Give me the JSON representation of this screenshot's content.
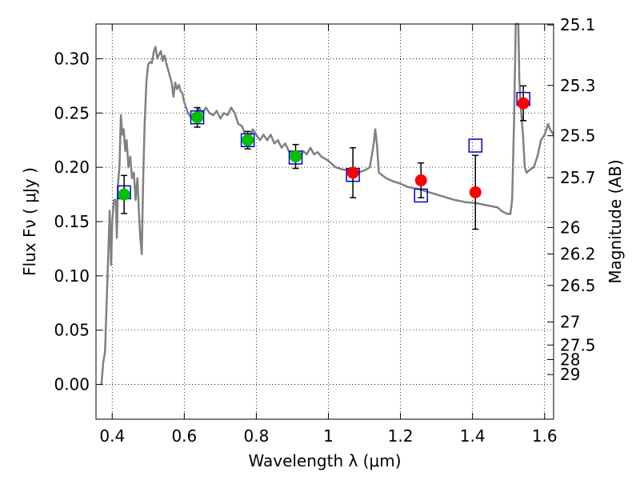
{
  "chart_data": {
    "type": "scatter",
    "title": "",
    "xlabel": "Wavelength  λ (μm)",
    "ylabel": "Flux  Fν  ( μJy )",
    "ylabel_right": "Magnitude (AB)",
    "xlim": [
      0.355,
      1.625
    ],
    "ylim": [
      -0.032,
      0.332
    ],
    "grid": true,
    "x_ticks": [
      0.4,
      0.6,
      0.8,
      1.0,
      1.2,
      1.4,
      1.6
    ],
    "x_tick_labels": [
      "0.4",
      "0.6",
      "0.8",
      "1",
      "1.2",
      "1.4",
      "1.6"
    ],
    "y_ticks": [
      0.0,
      0.05,
      0.1,
      0.15,
      0.2,
      0.25,
      0.3
    ],
    "y_tick_labels": [
      "0.00",
      "0.05",
      "0.10",
      "0.15",
      "0.20",
      "0.25",
      "0.30"
    ],
    "right_ticks": [
      {
        "mag": 25.1,
        "label": "25.1"
      },
      {
        "mag": 25.3,
        "label": "25.3"
      },
      {
        "mag": 25.5,
        "label": "25.5"
      },
      {
        "mag": 25.7,
        "label": "25.7"
      },
      {
        "mag": 26.0,
        "label": "26"
      },
      {
        "mag": 26.2,
        "label": "26.2"
      },
      {
        "mag": 26.5,
        "label": "26.5"
      },
      {
        "mag": 27.0,
        "label": "27"
      },
      {
        "mag": 27.5,
        "label": "27.5"
      },
      {
        "mag": 28.0,
        "label": "28"
      },
      {
        "mag": 29.0,
        "label": "29"
      }
    ],
    "colors": {
      "sed": "#808080",
      "green": "#00c000",
      "red": "#ff0000",
      "model_box": "#0000cc",
      "error_bar": "#000000",
      "grid": "#000000"
    },
    "series": [
      {
        "kind": "line",
        "points": [
          [
            0.37,
            0.0
          ],
          [
            0.375,
            0.02
          ],
          [
            0.38,
            0.03
          ],
          [
            0.385,
            0.08
          ],
          [
            0.39,
            0.13
          ],
          [
            0.393,
            0.16
          ],
          [
            0.397,
            0.11
          ],
          [
            0.4,
            0.15
          ],
          [
            0.405,
            0.17
          ],
          [
            0.41,
            0.17
          ],
          [
            0.413,
            0.135
          ],
          [
            0.416,
            0.185
          ],
          [
            0.42,
            0.2
          ],
          [
            0.424,
            0.248
          ],
          [
            0.428,
            0.23
          ],
          [
            0.432,
            0.235
          ],
          [
            0.436,
            0.215
          ],
          [
            0.44,
            0.225
          ],
          [
            0.445,
            0.2
          ],
          [
            0.45,
            0.21
          ],
          [
            0.455,
            0.19
          ],
          [
            0.46,
            0.195
          ],
          [
            0.465,
            0.17
          ],
          [
            0.47,
            0.19
          ],
          [
            0.474,
            0.16
          ],
          [
            0.478,
            0.135
          ],
          [
            0.482,
            0.12
          ],
          [
            0.486,
            0.19
          ],
          [
            0.49,
            0.24
          ],
          [
            0.495,
            0.28
          ],
          [
            0.5,
            0.295
          ],
          [
            0.505,
            0.297
          ],
          [
            0.51,
            0.296
          ],
          [
            0.515,
            0.306
          ],
          [
            0.52,
            0.311
          ],
          [
            0.525,
            0.3
          ],
          [
            0.53,
            0.304
          ],
          [
            0.535,
            0.307
          ],
          [
            0.54,
            0.298
          ],
          [
            0.545,
            0.303
          ],
          [
            0.55,
            0.296
          ],
          [
            0.555,
            0.29
          ],
          [
            0.56,
            0.284
          ],
          [
            0.565,
            0.278
          ],
          [
            0.57,
            0.265
          ],
          [
            0.575,
            0.278
          ],
          [
            0.58,
            0.272
          ],
          [
            0.585,
            0.276
          ],
          [
            0.59,
            0.27
          ],
          [
            0.595,
            0.268
          ],
          [
            0.6,
            0.26
          ],
          [
            0.61,
            0.25
          ],
          [
            0.62,
            0.245
          ],
          [
            0.63,
            0.245
          ],
          [
            0.64,
            0.255
          ],
          [
            0.65,
            0.25
          ],
          [
            0.66,
            0.255
          ],
          [
            0.67,
            0.25
          ],
          [
            0.68,
            0.248
          ],
          [
            0.69,
            0.252
          ],
          [
            0.7,
            0.245
          ],
          [
            0.71,
            0.25
          ],
          [
            0.72,
            0.248
          ],
          [
            0.73,
            0.255
          ],
          [
            0.74,
            0.25
          ],
          [
            0.75,
            0.24
          ],
          [
            0.76,
            0.238
          ],
          [
            0.77,
            0.23
          ],
          [
            0.78,
            0.225
          ],
          [
            0.79,
            0.235
          ],
          [
            0.8,
            0.23
          ],
          [
            0.81,
            0.225
          ],
          [
            0.82,
            0.23
          ],
          [
            0.83,
            0.225
          ],
          [
            0.84,
            0.23
          ],
          [
            0.85,
            0.222
          ],
          [
            0.86,
            0.225
          ],
          [
            0.87,
            0.218
          ],
          [
            0.88,
            0.222
          ],
          [
            0.89,
            0.215
          ],
          [
            0.9,
            0.212
          ],
          [
            0.91,
            0.215
          ],
          [
            0.92,
            0.21
          ],
          [
            0.93,
            0.215
          ],
          [
            0.94,
            0.212
          ],
          [
            0.95,
            0.218
          ],
          [
            0.96,
            0.212
          ],
          [
            0.97,
            0.214
          ],
          [
            0.98,
            0.21
          ],
          [
            0.99,
            0.208
          ],
          [
            1.0,
            0.206
          ],
          [
            1.02,
            0.2
          ],
          [
            1.04,
            0.198
          ],
          [
            1.06,
            0.197
          ],
          [
            1.08,
            0.195
          ],
          [
            1.1,
            0.197
          ],
          [
            1.115,
            0.2
          ],
          [
            1.125,
            0.22
          ],
          [
            1.13,
            0.235
          ],
          [
            1.135,
            0.22
          ],
          [
            1.14,
            0.195
          ],
          [
            1.16,
            0.19
          ],
          [
            1.18,
            0.187
          ],
          [
            1.2,
            0.185
          ],
          [
            1.22,
            0.182
          ],
          [
            1.25,
            0.18
          ],
          [
            1.28,
            0.177
          ],
          [
            1.3,
            0.175
          ],
          [
            1.32,
            0.173
          ],
          [
            1.35,
            0.17
          ],
          [
            1.38,
            0.168
          ],
          [
            1.41,
            0.167
          ],
          [
            1.44,
            0.165
          ],
          [
            1.47,
            0.163
          ],
          [
            1.48,
            0.16
          ],
          [
            1.49,
            0.158
          ],
          [
            1.5,
            0.157
          ],
          [
            1.505,
            0.157
          ],
          [
            1.51,
            0.17
          ],
          [
            1.515,
            0.24
          ],
          [
            1.52,
            0.332
          ],
          [
            1.527,
            0.332
          ],
          [
            1.53,
            0.28
          ],
          [
            1.535,
            0.25
          ],
          [
            1.54,
            0.23
          ],
          [
            1.545,
            0.2
          ],
          [
            1.55,
            0.195
          ],
          [
            1.56,
            0.198
          ],
          [
            1.57,
            0.2
          ],
          [
            1.58,
            0.21
          ],
          [
            1.59,
            0.225
          ],
          [
            1.6,
            0.23
          ],
          [
            1.61,
            0.24
          ],
          [
            1.615,
            0.235
          ],
          [
            1.625,
            0.23
          ]
        ]
      },
      {
        "kind": "model-box",
        "points": [
          {
            "x": 0.433,
            "y": 0.177
          },
          {
            "x": 0.636,
            "y": 0.246
          },
          {
            "x": 0.776,
            "y": 0.225
          },
          {
            "x": 0.909,
            "y": 0.209
          },
          {
            "x": 1.068,
            "y": 0.193
          },
          {
            "x": 1.257,
            "y": 0.174
          },
          {
            "x": 1.408,
            "y": 0.22
          },
          {
            "x": 1.541,
            "y": 0.263
          }
        ]
      },
      {
        "kind": "photometry",
        "points": [
          {
            "x": 0.433,
            "y": 0.175,
            "err": 0.0175,
            "color": "green"
          },
          {
            "x": 0.636,
            "y": 0.246,
            "err": 0.009,
            "color": "green"
          },
          {
            "x": 0.776,
            "y": 0.225,
            "err": 0.008,
            "color": "green"
          },
          {
            "x": 0.909,
            "y": 0.21,
            "err": 0.011,
            "color": "green"
          },
          {
            "x": 1.068,
            "y": 0.195,
            "err": 0.023,
            "color": "red"
          },
          {
            "x": 1.257,
            "y": 0.188,
            "err": 0.016,
            "color": "red"
          },
          {
            "x": 1.408,
            "y": 0.177,
            "err": 0.034,
            "color": "red"
          },
          {
            "x": 1.541,
            "y": 0.259,
            "err": 0.016,
            "color": "red"
          }
        ]
      }
    ]
  }
}
